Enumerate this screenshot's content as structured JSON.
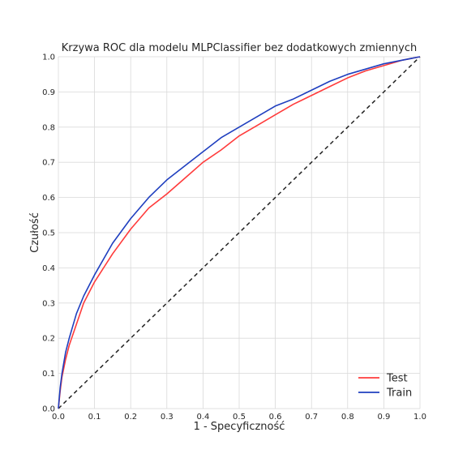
{
  "chart_data": {
    "type": "line",
    "title": "Krzywa ROC dla modelu MLPClassifier bez dodatkowych zmiennych",
    "xlabel": "1 - Specyficzność",
    "ylabel": "Czułość",
    "xlim": [
      0,
      1
    ],
    "ylim": [
      0,
      1
    ],
    "xticks": [
      "0.0",
      "0.1",
      "0.2",
      "0.3",
      "0.4",
      "0.5",
      "0.6",
      "0.7",
      "0.8",
      "0.9",
      "1.0"
    ],
    "yticks": [
      "0.0",
      "0.1",
      "0.2",
      "0.3",
      "0.4",
      "0.5",
      "0.6",
      "0.7",
      "0.8",
      "0.9",
      "1.0"
    ],
    "grid": true,
    "legend_position": "lower-right",
    "series": [
      {
        "name": "Test",
        "color": "#ff3b3b",
        "x": [
          0.0,
          0.005,
          0.01,
          0.02,
          0.03,
          0.05,
          0.07,
          0.1,
          0.15,
          0.2,
          0.25,
          0.3,
          0.35,
          0.4,
          0.45,
          0.5,
          0.55,
          0.6,
          0.65,
          0.7,
          0.75,
          0.8,
          0.85,
          0.9,
          0.95,
          1.0
        ],
        "y": [
          0.0,
          0.05,
          0.09,
          0.14,
          0.18,
          0.24,
          0.3,
          0.36,
          0.44,
          0.51,
          0.57,
          0.61,
          0.655,
          0.7,
          0.735,
          0.775,
          0.805,
          0.835,
          0.865,
          0.89,
          0.915,
          0.94,
          0.96,
          0.975,
          0.99,
          1.0
        ]
      },
      {
        "name": "Train",
        "color": "#1f3fbf",
        "x": [
          0.0,
          0.005,
          0.01,
          0.02,
          0.03,
          0.05,
          0.07,
          0.1,
          0.15,
          0.2,
          0.25,
          0.3,
          0.35,
          0.4,
          0.45,
          0.5,
          0.55,
          0.6,
          0.65,
          0.7,
          0.75,
          0.8,
          0.85,
          0.9,
          0.95,
          1.0
        ],
        "y": [
          0.0,
          0.06,
          0.1,
          0.16,
          0.2,
          0.27,
          0.32,
          0.38,
          0.47,
          0.54,
          0.6,
          0.65,
          0.69,
          0.73,
          0.77,
          0.8,
          0.83,
          0.86,
          0.88,
          0.905,
          0.93,
          0.95,
          0.965,
          0.98,
          0.99,
          1.0
        ]
      }
    ],
    "reference_line": {
      "style": "dashed",
      "color": "#222222",
      "x": [
        0,
        1
      ],
      "y": [
        0,
        1
      ]
    }
  }
}
